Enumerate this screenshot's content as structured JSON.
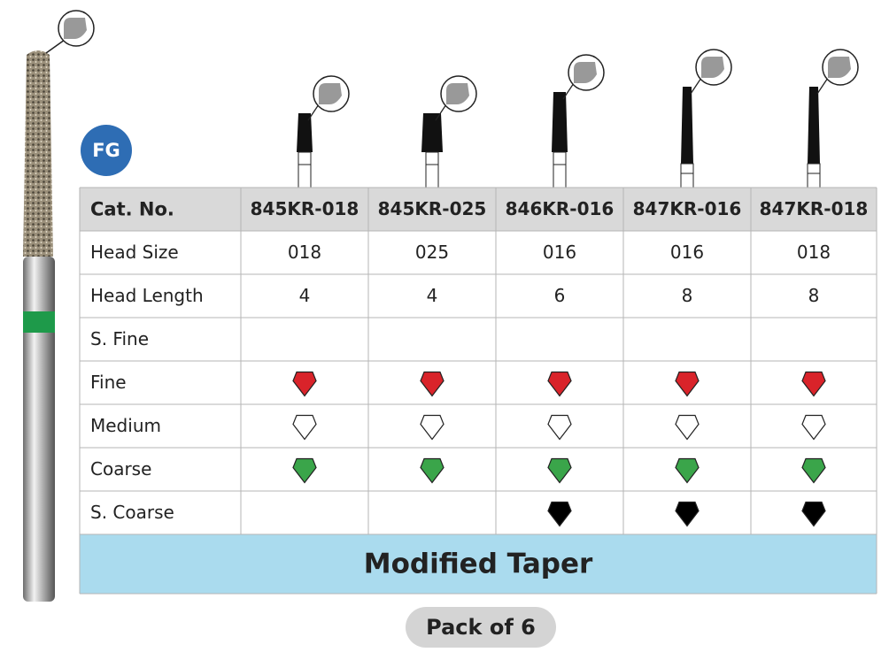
{
  "badge": "FG",
  "table": {
    "header": {
      "label": "Cat. No.",
      "cells": [
        "845KR-018",
        "845KR-025",
        "846KR-016",
        "847KR-016",
        "847KR-018"
      ]
    },
    "text_rows": [
      {
        "label": "Head Size",
        "cells": [
          "018",
          "025",
          "016",
          "016",
          "018"
        ]
      },
      {
        "label": "Head Length",
        "cells": [
          4,
          4,
          6,
          8,
          8
        ]
      }
    ],
    "grit_rows": [
      {
        "label": "S. Fine",
        "color": "#ffffff",
        "available": [
          false,
          false,
          false,
          false,
          false
        ]
      },
      {
        "label": "Fine",
        "color": "#d9232a",
        "available": [
          true,
          true,
          true,
          true,
          true
        ]
      },
      {
        "label": "Medium",
        "color": "#ffffff",
        "available": [
          true,
          true,
          true,
          true,
          true
        ]
      },
      {
        "label": "Coarse",
        "color": "#3aa54a",
        "available": [
          true,
          true,
          true,
          true,
          true
        ]
      },
      {
        "label": "S. Coarse",
        "color": "#000000",
        "available": [
          false,
          false,
          true,
          true,
          true
        ]
      }
    ],
    "footer": "Modified Taper"
  },
  "pack": "Pack of 6"
}
